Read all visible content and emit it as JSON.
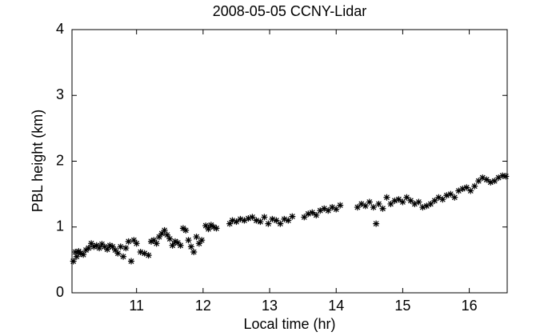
{
  "chart_data": {
    "type": "scatter",
    "title": "2008-05-05 CCNY-Lidar",
    "x_label": "Local time (hr)",
    "y_label": "PBL height (km)",
    "series": [
      {
        "color": "#000000",
        "x": [
          10.05,
          10.08,
          10.1,
          10.13,
          10.16,
          10.2,
          10.24,
          10.28,
          10.32,
          10.36,
          10.4,
          10.44,
          10.48,
          10.52,
          10.56,
          10.6,
          10.64,
          10.68,
          10.72,
          10.76,
          10.8,
          10.84,
          10.88,
          10.92,
          10.96,
          11.0,
          11.06,
          11.12,
          11.18,
          11.22,
          11.26,
          11.3,
          11.34,
          11.38,
          11.42,
          11.46,
          11.5,
          11.54,
          11.58,
          11.62,
          11.66,
          11.7,
          11.74,
          11.78,
          11.82,
          11.86,
          11.9,
          11.94,
          11.98,
          12.04,
          12.08,
          12.12,
          12.16,
          12.2,
          12.4,
          12.44,
          12.5,
          12.56,
          12.62,
          12.68,
          12.74,
          12.8,
          12.86,
          12.92,
          12.98,
          13.04,
          13.1,
          13.16,
          13.22,
          13.28,
          13.34,
          13.52,
          13.58,
          13.64,
          13.7,
          13.76,
          13.82,
          13.88,
          13.94,
          14.0,
          14.06,
          14.32,
          14.38,
          14.44,
          14.5,
          14.56,
          14.6,
          14.64,
          14.7,
          14.76,
          14.82,
          14.88,
          14.94,
          15.0,
          15.06,
          15.12,
          15.18,
          15.24,
          15.3,
          15.36,
          15.42,
          15.48,
          15.54,
          15.6,
          15.66,
          15.72,
          15.78,
          15.84,
          15.9,
          15.96,
          16.02,
          16.08,
          16.14,
          16.2,
          16.26,
          16.32,
          16.38,
          16.44,
          16.5,
          16.55
        ],
        "values": [
          0.48,
          0.62,
          0.55,
          0.63,
          0.6,
          0.58,
          0.65,
          0.68,
          0.75,
          0.7,
          0.72,
          0.68,
          0.74,
          0.7,
          0.66,
          0.72,
          0.7,
          0.65,
          0.6,
          0.7,
          0.55,
          0.68,
          0.78,
          0.48,
          0.8,
          0.75,
          0.62,
          0.6,
          0.57,
          0.78,
          0.8,
          0.75,
          0.85,
          0.9,
          0.95,
          0.88,
          0.82,
          0.72,
          0.78,
          0.76,
          0.72,
          0.98,
          0.95,
          0.8,
          0.7,
          0.62,
          0.85,
          0.75,
          0.8,
          1.02,
          0.97,
          1.03,
          1.0,
          0.98,
          1.05,
          1.1,
          1.08,
          1.12,
          1.1,
          1.13,
          1.15,
          1.1,
          1.08,
          1.15,
          1.05,
          1.12,
          1.1,
          1.05,
          1.12,
          1.1,
          1.16,
          1.15,
          1.2,
          1.22,
          1.18,
          1.25,
          1.28,
          1.25,
          1.3,
          1.27,
          1.33,
          1.3,
          1.35,
          1.32,
          1.38,
          1.3,
          1.05,
          1.35,
          1.28,
          1.45,
          1.35,
          1.4,
          1.42,
          1.38,
          1.45,
          1.4,
          1.35,
          1.38,
          1.3,
          1.32,
          1.35,
          1.4,
          1.45,
          1.42,
          1.48,
          1.5,
          1.45,
          1.55,
          1.58,
          1.6,
          1.55,
          1.62,
          1.7,
          1.75,
          1.72,
          1.68,
          1.7,
          1.75,
          1.78,
          1.77
        ]
      }
    ],
    "xlim": [
      10.03,
      16.57
    ],
    "xticks": [
      11,
      12,
      13,
      14,
      15,
      16
    ],
    "ylim": [
      0,
      4
    ],
    "yticks": [
      0,
      1,
      2,
      3,
      4
    ],
    "grid": false
  }
}
